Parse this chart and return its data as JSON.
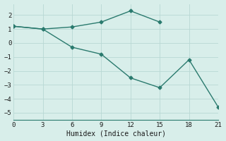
{
  "line1_x": [
    0,
    3,
    6,
    9,
    12,
    15
  ],
  "line1_y": [
    1.2,
    1.0,
    1.15,
    1.5,
    2.3,
    1.5
  ],
  "line2_x": [
    0,
    3,
    6,
    9,
    12,
    15,
    18,
    21
  ],
  "line2_y": [
    1.2,
    1.0,
    -0.3,
    -0.8,
    -2.5,
    -3.2,
    -1.2,
    -4.6
  ],
  "color": "#2a7a6e",
  "bg_color": "#d8eeea",
  "grid_color": "#b8d8d4",
  "xlabel": "Humidex (Indice chaleur)",
  "xlim": [
    0,
    21
  ],
  "ylim": [
    -5.5,
    2.8
  ],
  "xticks": [
    0,
    3,
    6,
    9,
    12,
    15,
    18,
    21
  ],
  "yticks": [
    -5,
    -4,
    -3,
    -2,
    -1,
    0,
    1,
    2
  ]
}
